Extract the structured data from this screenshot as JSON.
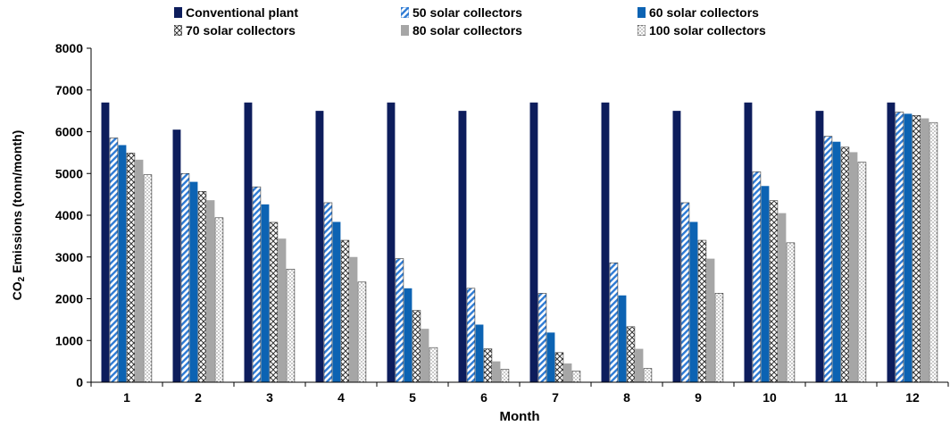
{
  "chart_data": {
    "type": "bar",
    "title": "",
    "xlabel": "Month",
    "ylabel_prefix": "CO",
    "ylabel_sub": "2",
    "ylabel_suffix": " Emissions (tonn/month)",
    "ylim": [
      0,
      8000
    ],
    "yticks": [
      "0",
      "1000",
      "2000",
      "3000",
      "4000",
      "5000",
      "6000",
      "7000",
      "8000"
    ],
    "categories": [
      "1",
      "2",
      "3",
      "4",
      "5",
      "6",
      "7",
      "8",
      "9",
      "10",
      "11",
      "12"
    ],
    "legend_position": "top",
    "grid": false,
    "series": [
      {
        "name": "Conventional plant",
        "pattern": "solid",
        "color": "#0d1d5c",
        "values": [
          6700,
          6050,
          6700,
          6500,
          6700,
          6500,
          6700,
          6700,
          6500,
          6700,
          6500,
          6700
        ]
      },
      {
        "name": "50 solar collectors",
        "pattern": "diagonal",
        "color": "#2e7bd4",
        "values": [
          5850,
          5000,
          4680,
          4300,
          2960,
          2250,
          2130,
          2860,
          4300,
          5040,
          5890,
          6470
        ]
      },
      {
        "name": "60 solar collectors",
        "pattern": "solid",
        "color": "#0c63b3",
        "values": [
          5680,
          4800,
          4260,
          3840,
          2250,
          1380,
          1190,
          2080,
          3840,
          4700,
          5760,
          6430
        ]
      },
      {
        "name": "70 solar collectors",
        "pattern": "crosshatch",
        "color": "#333333",
        "values": [
          5490,
          4570,
          3830,
          3400,
          1720,
          800,
          710,
          1330,
          3400,
          4350,
          5630,
          6390
        ]
      },
      {
        "name": "80 solar collectors",
        "pattern": "solid",
        "color": "#a6a6a6",
        "values": [
          5330,
          4360,
          3440,
          3000,
          1280,
          500,
          450,
          800,
          2960,
          4050,
          5510,
          6320
        ]
      },
      {
        "name": "100 solar collectors",
        "pattern": "dots",
        "color": "#333333",
        "values": [
          4970,
          3940,
          2710,
          2400,
          830,
          310,
          270,
          330,
          2130,
          3340,
          5270,
          6220
        ]
      }
    ]
  }
}
